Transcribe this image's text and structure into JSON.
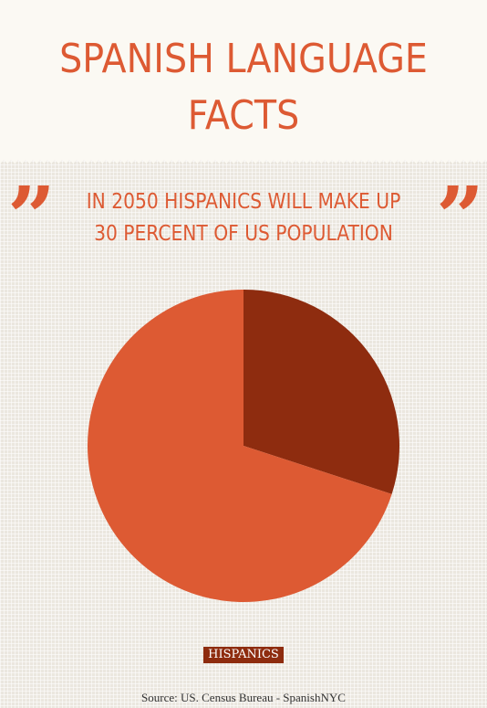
{
  "page": {
    "title": "SPANISH LANGUAGE FACTS",
    "subtitle_lines": [
      "IN 2050 HISPANICS WILL MAKE UP",
      "30 PERCENT OF US POPULATION"
    ],
    "quote_glyph": "”",
    "source": "Source: US. Census Bureau - SpanishNYC"
  },
  "colors": {
    "accent": "#dd5a33",
    "dark": "#8e2c0f",
    "header_bg": "#fbf9f3"
  },
  "chart_data": {
    "type": "pie",
    "slices": [
      {
        "label": "HISPANICS",
        "value": 30,
        "color": "#8e2c0f",
        "show_legend": true
      },
      {
        "label": "",
        "value": 70,
        "color": "#dd5a33",
        "show_legend": false
      }
    ],
    "legend": {
      "placement": "bottom",
      "entries": [
        "HISPANICS"
      ]
    }
  }
}
